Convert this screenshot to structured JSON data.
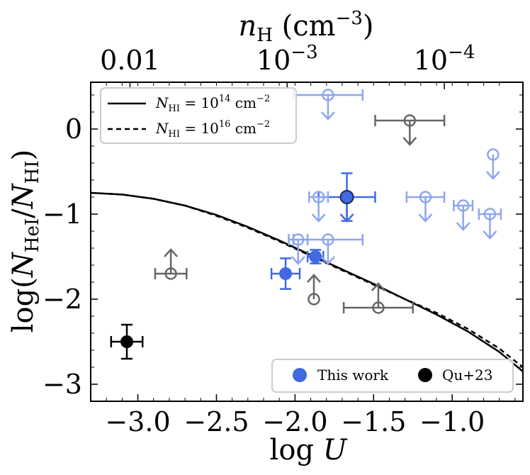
{
  "chart_data": {
    "type": "scatter",
    "xlabel": "log U",
    "ylabel": "log(N_HeI/N_HI)",
    "top_xlabel": "n_H (cm^-3)",
    "xlim": [
      -3.3,
      -0.55
    ],
    "ylim": [
      -3.2,
      0.55
    ],
    "x_ticks": [
      -3.0,
      -2.5,
      -2.0,
      -1.5,
      -1.0
    ],
    "x_tick_labels": [
      "−3.0",
      "−2.5",
      "−2.0",
      "−1.5",
      "−1.0"
    ],
    "y_ticks": [
      0,
      -1,
      -2,
      -3
    ],
    "y_tick_labels": [
      "0",
      "−1",
      "−2",
      "−3"
    ],
    "top_ticks": [
      {
        "logU": -3.05,
        "base": "0.01",
        "exp": ""
      },
      {
        "logU": -2.05,
        "base": "10",
        "exp": "−3"
      },
      {
        "logU": -1.05,
        "base": "10",
        "exp": "−4"
      }
    ],
    "colors": {
      "this_work": "#4169e1",
      "qu23": "#000000",
      "light_blue": "#8fa6ee",
      "grey": "#666666"
    },
    "legend_lines": [
      {
        "label": "N_HI = 10^14 cm^-2",
        "style": "solid"
      },
      {
        "label": "N_HI = 10^16 cm^-2",
        "style": "dashed"
      }
    ],
    "legend_points": [
      {
        "label": "This work",
        "color": "#4169e1"
      },
      {
        "label": "Qu+23",
        "color": "#000000"
      }
    ],
    "series": [
      {
        "name": "model N_HI=1e14",
        "style": "solid",
        "x": [
          -3.3,
          -3.1,
          -2.9,
          -2.7,
          -2.5,
          -2.3,
          -2.1,
          -1.9,
          -1.7,
          -1.5,
          -1.3,
          -1.1,
          -0.9,
          -0.7,
          -0.55
        ],
        "y": [
          -0.75,
          -0.77,
          -0.82,
          -0.9,
          -1.01,
          -1.15,
          -1.31,
          -1.48,
          -1.65,
          -1.82,
          -2.0,
          -2.18,
          -2.38,
          -2.62,
          -2.85
        ]
      },
      {
        "name": "model N_HI=1e16",
        "style": "dashed",
        "x": [
          -3.3,
          -3.1,
          -2.9,
          -2.7,
          -2.5,
          -2.3,
          -2.1,
          -1.9,
          -1.7,
          -1.5,
          -1.3,
          -1.1,
          -0.9,
          -0.7,
          -0.55
        ],
        "y": [
          -0.75,
          -0.77,
          -0.82,
          -0.9,
          -1.02,
          -1.16,
          -1.32,
          -1.49,
          -1.66,
          -1.83,
          -2.0,
          -2.16,
          -2.35,
          -2.58,
          -2.8
        ]
      }
    ],
    "points": [
      {
        "group": "this_work",
        "style": "filled",
        "x": -2.06,
        "y": -1.7,
        "xerr": 0.09,
        "yerr": 0.18
      },
      {
        "group": "this_work",
        "style": "filled",
        "x": -1.87,
        "y": -1.5,
        "xerr": 0.05,
        "yerr": 0.08
      },
      {
        "group": "this_work",
        "style": "filled-edged",
        "x": -1.67,
        "y": -0.8,
        "xerr": 0.18,
        "yerr": 0.28,
        "limit": "upper"
      },
      {
        "group": "qu23",
        "style": "filled",
        "x": -3.07,
        "y": -2.5,
        "xerr": 0.1,
        "yerr": 0.2
      },
      {
        "group": "light",
        "style": "open",
        "x": -1.79,
        "y": 0.4,
        "xerr": 0.22,
        "limit": "upper"
      },
      {
        "group": "light",
        "style": "open",
        "x": -0.74,
        "y": -0.3,
        "xerr": 0.0,
        "limit": "upper"
      },
      {
        "group": "light",
        "style": "open",
        "x": -1.85,
        "y": -0.8,
        "xerr": 0.06,
        "limit": "upper"
      },
      {
        "group": "light",
        "style": "open",
        "x": -1.17,
        "y": -0.8,
        "xerr": 0.12,
        "limit": "upper"
      },
      {
        "group": "light",
        "style": "open",
        "x": -0.93,
        "y": -0.9,
        "xerr": 0.06,
        "limit": "upper"
      },
      {
        "group": "light",
        "style": "open",
        "x": -0.76,
        "y": -1.0,
        "xerr": 0.07,
        "limit": "upper"
      },
      {
        "group": "light",
        "style": "open",
        "x": -1.98,
        "y": -1.3,
        "xerr": 0.06,
        "limit": "upper"
      },
      {
        "group": "light",
        "style": "open",
        "x": -1.79,
        "y": -1.3,
        "xerr": 0.22,
        "limit": "upper"
      },
      {
        "group": "grey",
        "style": "open",
        "x": -1.27,
        "y": 0.1,
        "xerr": 0.22,
        "limit": "upper"
      },
      {
        "group": "grey",
        "style": "open",
        "x": -2.79,
        "y": -1.7,
        "xerr": 0.1,
        "limit": "lower"
      },
      {
        "group": "grey",
        "style": "open",
        "x": -1.88,
        "y": -2.0,
        "xerr": 0.0,
        "limit": "lower"
      },
      {
        "group": "grey",
        "style": "open",
        "x": -1.47,
        "y": -2.1,
        "xerr": 0.22,
        "limit": "lower"
      }
    ]
  }
}
